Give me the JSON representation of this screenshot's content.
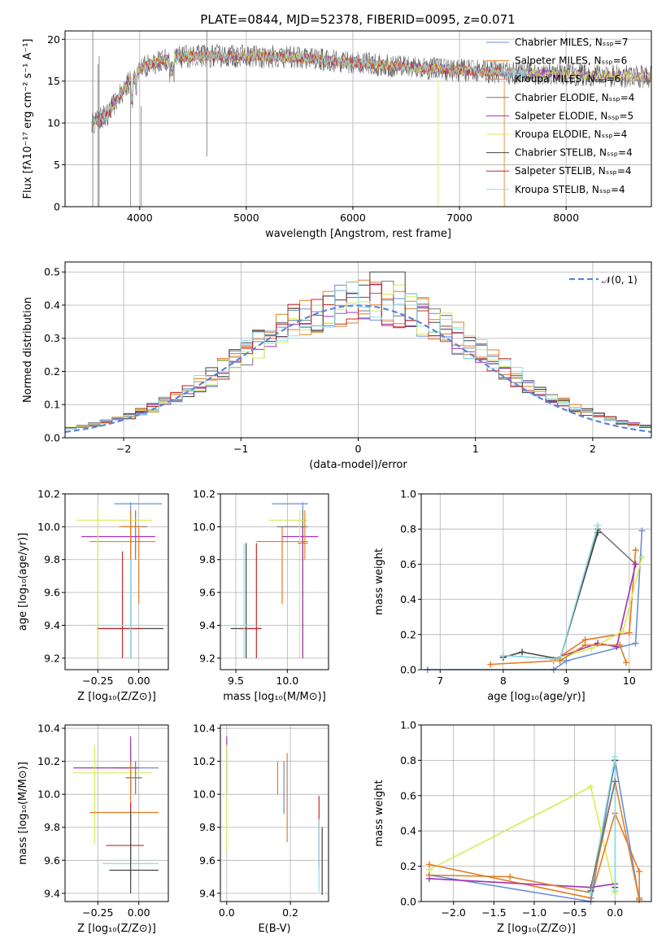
{
  "title": "PLATE=0844, MJD=52378, FIBERID=0095, z=0.071",
  "colors": [
    "#6a8ed6",
    "#e87a22",
    "#d9822b",
    "#777777",
    "#a033b5",
    "#d6ec55",
    "#444444",
    "#c0292a",
    "#8fdde4"
  ],
  "chart_data": [
    {
      "id": "spectrum",
      "type": "line",
      "xlabel": "wavelength [Angstrom, rest frame]",
      "ylabel": "Flux [fλ10⁻¹⁷ erg cm⁻² s⁻¹ A⁻¹]",
      "xlim": [
        3300,
        8800
      ],
      "ylim": [
        0,
        21
      ],
      "xticks": [
        "4000",
        "5000",
        "6000",
        "7000",
        "8000"
      ],
      "yticks": [
        "0",
        "5",
        "10",
        "15",
        "20"
      ],
      "legend_position": "top-right",
      "legend": [
        "Chabrier MILES, Nₛₛₚ=7",
        "Salpeter MILES, Nₛₛₚ=6",
        "Kroupa MILES, Nₛₛₚ=6",
        "Chabrier ELODIE, Nₛₛₚ=4",
        "Salpeter ELODIE, Nₛₛₚ=5",
        "Kroupa ELODIE, Nₛₛₚ=4",
        "Chabrier STELIB, Nₛₛₚ=4",
        "Salpeter STELIB, Nₛₛₚ=4",
        "Kroupa STELIB, Nₛₛₚ=4"
      ],
      "continuum": [
        [
          3550,
          10
        ],
        [
          3700,
          11
        ],
        [
          3850,
          14
        ],
        [
          4000,
          16.5
        ],
        [
          4200,
          17.5
        ],
        [
          4500,
          18
        ],
        [
          5000,
          18
        ],
        [
          5500,
          17.8
        ],
        [
          6000,
          17.2
        ],
        [
          6500,
          16.7
        ],
        [
          7000,
          16.3
        ],
        [
          7500,
          16
        ],
        [
          8000,
          15.8
        ],
        [
          8500,
          15.6
        ],
        [
          8800,
          15.5
        ]
      ]
    },
    {
      "id": "residuals",
      "type": "histogram",
      "xlabel": "(data-model)/error",
      "ylabel": "Normed distribution",
      "xlim": [
        -2.5,
        2.5
      ],
      "ylim": [
        0,
        0.53
      ],
      "xticks": [
        "−2",
        "−1",
        "0",
        "1",
        "2"
      ],
      "yticks": [
        "0.0",
        "0.1",
        "0.2",
        "0.3",
        "0.4",
        "0.5"
      ],
      "legend_position": "top-right",
      "legend": [
        "𝒩(0, 1)"
      ],
      "peak": 0.4
    },
    {
      "id": "age-vs-Z",
      "type": "scatter",
      "xlabel": "Z [log₁₀(Z/Z⊙)]",
      "ylabel": "age  [log₁₀(age/yr)]",
      "xlim": [
        -0.45,
        0.18
      ],
      "ylim": [
        9.13,
        10.2
      ],
      "xticks": [
        "−0.25",
        "0.00"
      ],
      "yticks": [
        "9.2",
        "9.4",
        "9.6",
        "9.8",
        "10.0",
        "10.2"
      ],
      "points": [
        {
          "x": -0.05,
          "y": 10.14,
          "xe": [
            -0.15,
            0.14
          ],
          "ye": [
            9.2,
            10.15
          ],
          "c": 0
        },
        {
          "x": -0.02,
          "y": 10.0,
          "xe": [
            -0.1,
            0.05
          ],
          "ye": [
            9.8,
            10.1
          ],
          "c": 3
        },
        {
          "x": 0.0,
          "y": 9.91,
          "xe": [
            -0.3,
            0.1
          ],
          "ye": [
            9.53,
            10.0
          ],
          "c": 1
        },
        {
          "x": -0.05,
          "y": 9.94,
          "xe": [
            -0.35,
            0.1
          ],
          "ye": [
            9.2,
            10.0
          ],
          "c": 4
        },
        {
          "x": -0.25,
          "y": 10.04,
          "xe": [
            -0.38,
            0.08
          ],
          "ye": [
            9.2,
            10.12
          ],
          "c": 5
        },
        {
          "x": -0.05,
          "y": 9.38,
          "xe": [
            -0.25,
            0.15
          ],
          "ye": [
            9.2,
            9.95
          ],
          "c": 6
        },
        {
          "x": -0.1,
          "y": 9.38,
          "xe": [
            -0.25,
            0.02
          ],
          "ye": [
            9.2,
            9.85
          ],
          "c": 7
        },
        {
          "x": -0.05,
          "y": 9.4,
          "xe": [
            -0.3,
            0.05
          ],
          "ye": [
            9.2,
            9.9
          ],
          "c": 8
        },
        {
          "x": -0.05,
          "y": 10.0,
          "xe": [
            -0.12,
            0.02
          ],
          "ye": [
            9.8,
            10.1
          ],
          "c": 2
        }
      ]
    },
    {
      "id": "age-vs-mass",
      "type": "scatter",
      "xlabel": "mass [log₁₀(M/M⊙)]",
      "ylabel": "",
      "xlim": [
        9.35,
        10.4
      ],
      "ylim": [
        9.13,
        10.2
      ],
      "xticks": [
        "9.5",
        "10.0"
      ],
      "yticks": [
        "9.2",
        "9.4",
        "9.6",
        "9.8",
        "10.0",
        "10.2"
      ],
      "points": [
        {
          "x": 10.15,
          "y": 10.14,
          "xe": [
            9.85,
            10.2
          ],
          "ye": [
            9.2,
            10.15
          ],
          "c": 0
        },
        {
          "x": 10.15,
          "y": 10.0,
          "xe": [
            9.9,
            10.2
          ],
          "ye": [
            9.8,
            10.1
          ],
          "c": 3
        },
        {
          "x": 9.95,
          "y": 9.91,
          "xe": [
            9.7,
            10.2
          ],
          "ye": [
            9.53,
            10.0
          ],
          "c": 1
        },
        {
          "x": 10.15,
          "y": 9.94,
          "xe": [
            9.95,
            10.3
          ],
          "ye": [
            9.2,
            10.0
          ],
          "c": 4
        },
        {
          "x": 10.12,
          "y": 10.04,
          "xe": [
            9.82,
            10.2
          ],
          "ye": [
            9.2,
            10.1
          ],
          "c": 5
        },
        {
          "x": 9.6,
          "y": 9.38,
          "xe": [
            9.45,
            9.75
          ],
          "ye": [
            9.2,
            9.9
          ],
          "c": 6
        },
        {
          "x": 9.7,
          "y": 9.38,
          "xe": [
            9.55,
            9.75
          ],
          "ye": [
            9.2,
            9.9
          ],
          "c": 7
        },
        {
          "x": 9.58,
          "y": 9.4,
          "xe": [
            9.45,
            9.7
          ],
          "ye": [
            9.2,
            9.9
          ],
          "c": 8
        },
        {
          "x": 10.17,
          "y": 9.9,
          "xe": [
            10.1,
            10.2
          ],
          "ye": [
            9.8,
            10.1
          ],
          "c": 2
        }
      ]
    },
    {
      "id": "weight-vs-age",
      "type": "line",
      "xlabel": "age  [log₁₀(age/yr)]",
      "ylabel": "mass weight",
      "xlim": [
        6.7,
        10.35
      ],
      "ylim": [
        0,
        1.0
      ],
      "xticks": [
        "7",
        "8",
        "9",
        "10"
      ],
      "yticks": [
        "0.0",
        "0.2",
        "0.4",
        "0.6",
        "0.8",
        "1.0"
      ],
      "series": [
        {
          "c": 0,
          "x": [
            6.8,
            8.8,
            9.0,
            10.1,
            10.2
          ],
          "y": [
            0.0,
            0.0,
            0.05,
            0.15,
            0.79
          ]
        },
        {
          "c": 1,
          "x": [
            7.8,
            8.8,
            9.3,
            10.0,
            10.1
          ],
          "y": [
            0.03,
            0.05,
            0.17,
            0.21,
            0.68
          ]
        },
        {
          "c": 3,
          "x": [
            8.0,
            8.9,
            9.5,
            10.1
          ],
          "y": [
            0.08,
            0.06,
            0.8,
            0.6
          ]
        },
        {
          "c": 4,
          "x": [
            8.8,
            9.5,
            9.8,
            10.1
          ],
          "y": [
            0.06,
            0.15,
            0.13,
            0.6
          ]
        },
        {
          "c": 5,
          "x": [
            8.8,
            9.4,
            9.9,
            10.2
          ],
          "y": [
            0.06,
            0.12,
            0.22,
            0.64
          ]
        },
        {
          "c": 6,
          "x": [
            8.0,
            8.3,
            8.9,
            9.5
          ],
          "y": [
            0.07,
            0.1,
            0.06,
            0.78
          ]
        },
        {
          "c": 8,
          "x": [
            8.0,
            8.9,
            9.5
          ],
          "y": [
            0.08,
            0.06,
            0.82
          ]
        },
        {
          "c": 2,
          "x": [
            8.9,
            9.3,
            9.85,
            9.95
          ],
          "y": [
            0.05,
            0.14,
            0.14,
            0.04
          ]
        }
      ]
    },
    {
      "id": "mass-vs-Z",
      "type": "scatter",
      "xlabel": "Z [log₁₀(Z/Z⊙)]",
      "ylabel": "mass [log₁₀(M/M⊙)]",
      "xlim": [
        -0.45,
        0.18
      ],
      "ylim": [
        9.35,
        10.42
      ],
      "xticks": [
        "−0.25",
        "0.00"
      ],
      "yticks": [
        "9.4",
        "9.6",
        "9.8",
        "10.0",
        "10.2",
        "10.4"
      ],
      "points": [
        {
          "x": -0.05,
          "y": 10.16,
          "xe": [
            -0.15,
            0.12
          ],
          "ye": [
            10.0,
            10.3
          ],
          "c": 0
        },
        {
          "x": -0.05,
          "y": 10.16,
          "xe": [
            -0.4,
            0.0
          ],
          "ye": [
            10.0,
            10.35
          ],
          "c": 4
        },
        {
          "x": -0.27,
          "y": 10.13,
          "xe": [
            -0.4,
            0.08
          ],
          "ye": [
            9.7,
            10.3
          ],
          "c": 5
        },
        {
          "x": -0.05,
          "y": 9.89,
          "xe": [
            -0.3,
            0.12
          ],
          "ye": [
            9.65,
            10.2
          ],
          "c": 1
        },
        {
          "x": -0.05,
          "y": 9.69,
          "xe": [
            -0.2,
            0.03
          ],
          "ye": [
            9.6,
            9.95
          ],
          "c": 7
        },
        {
          "x": -0.05,
          "y": 9.58,
          "xe": [
            -0.22,
            0.12
          ],
          "ye": [
            9.5,
            9.9
          ],
          "c": 8
        },
        {
          "x": -0.05,
          "y": 9.54,
          "xe": [
            -0.18,
            0.12
          ],
          "ye": [
            9.4,
            9.9
          ],
          "c": 6
        },
        {
          "x": -0.02,
          "y": 10.1,
          "xe": [
            -0.08,
            0.02
          ],
          "ye": [
            10.0,
            10.2
          ],
          "c": 3
        }
      ]
    },
    {
      "id": "mass-vs-EBV",
      "type": "scatter",
      "xlabel": "E(B-V)",
      "ylabel": "",
      "xlim": [
        -0.02,
        0.32
      ],
      "ylim": [
        9.35,
        10.42
      ],
      "xticks": [
        "0.0",
        "0.2"
      ],
      "yticks": [
        "9.4",
        "9.6",
        "9.8",
        "10.0",
        "10.2",
        "10.4"
      ],
      "points": [
        {
          "x": 0.0,
          "ye": [
            10.0,
            10.35
          ],
          "c": 4
        },
        {
          "x": 0.0,
          "ye": [
            9.65,
            10.3
          ],
          "c": 5
        },
        {
          "x": 0.16,
          "ye": [
            10.0,
            10.2
          ],
          "c": 1
        },
        {
          "x": 0.18,
          "ye": [
            9.88,
            10.2
          ],
          "c": 0
        },
        {
          "x": 0.19,
          "ye": [
            9.71,
            10.25
          ],
          "c": 2
        },
        {
          "x": 0.29,
          "ye": [
            9.55,
            9.99
          ],
          "c": 7
        },
        {
          "x": 0.29,
          "ye": [
            9.41,
            9.85
          ],
          "c": 8
        },
        {
          "x": 0.3,
          "ye": [
            9.39,
            9.8
          ],
          "c": 6
        }
      ]
    },
    {
      "id": "weight-vs-Z",
      "type": "line",
      "xlabel": "Z [log₁₀(Z/Z⊙)]",
      "ylabel": "mass weight",
      "xlim": [
        -2.4,
        0.45
      ],
      "ylim": [
        0,
        1.0
      ],
      "xticks": [
        "−2.0",
        "−1.5",
        "−1.0",
        "−0.5",
        "0.0"
      ],
      "yticks": [
        "0.0",
        "0.2",
        "0.4",
        "0.6",
        "0.8",
        "1.0"
      ],
      "series": [
        {
          "c": 5,
          "x": [
            -2.3,
            -0.3,
            0.0
          ],
          "y": [
            0.18,
            0.65,
            0.05
          ]
        },
        {
          "c": 1,
          "x": [
            -2.3,
            -0.3,
            0.0,
            0.3,
            0.3
          ],
          "y": [
            0.21,
            0.02,
            0.5,
            0.17,
            0.02
          ]
        },
        {
          "c": 0,
          "x": [
            -2.3,
            -0.3,
            0.0,
            0.3
          ],
          "y": [
            0.15,
            0.0,
            0.8,
            0.01
          ]
        },
        {
          "c": 4,
          "x": [
            -2.3,
            -0.3,
            0.0
          ],
          "y": [
            0.13,
            0.08,
            0.1
          ]
        },
        {
          "c": 2,
          "x": [
            -2.3,
            -1.3,
            -0.3,
            0.0,
            0.3
          ],
          "y": [
            0.15,
            0.14,
            0.05,
            0.68,
            0.01
          ]
        },
        {
          "c": 6,
          "x": [
            -0.3,
            0.0,
            0.0
          ],
          "y": [
            0.06,
            0.8,
            0.08
          ]
        },
        {
          "c": 8,
          "x": [
            -0.3,
            0.0,
            0.0
          ],
          "y": [
            0.05,
            0.82,
            0.06
          ]
        },
        {
          "c": 3,
          "x": [
            -0.3,
            0.0
          ],
          "y": [
            0.08,
            0.68
          ]
        }
      ]
    }
  ]
}
